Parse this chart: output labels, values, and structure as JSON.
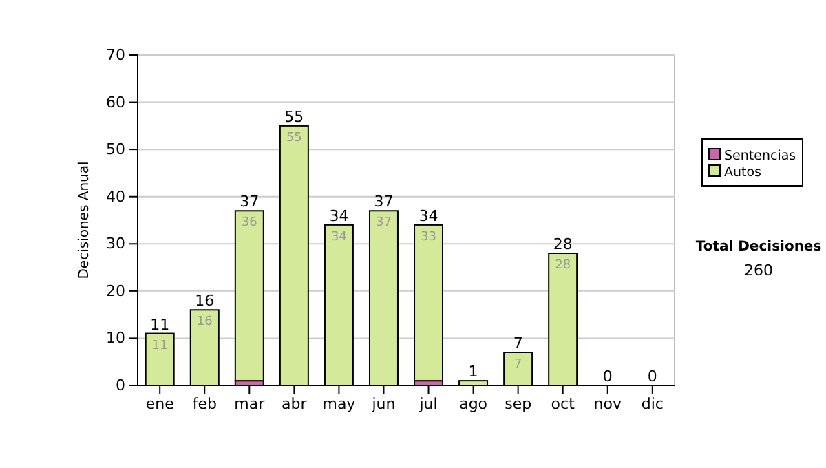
{
  "chart_data": {
    "type": "bar",
    "ylabel": "Decisiones Anual",
    "categories": [
      "ene",
      "feb",
      "mar",
      "abr",
      "may",
      "jun",
      "jul",
      "ago",
      "sep",
      "oct",
      "nov",
      "dic"
    ],
    "stacked": true,
    "series": [
      {
        "name": "Sentencias",
        "color": "#cc66aa",
        "values": [
          0,
          0,
          1,
          0,
          0,
          0,
          1,
          0,
          0,
          0,
          0,
          0
        ]
      },
      {
        "name": "Autos",
        "color": "#d4e99a",
        "values": [
          11,
          16,
          36,
          55,
          34,
          37,
          33,
          1,
          7,
          28,
          0,
          0
        ],
        "value_labels": [
          "11",
          "16",
          "36",
          "55",
          "34",
          "37",
          "33",
          null,
          "7",
          "28",
          null,
          null
        ]
      }
    ],
    "totals": [
      "11",
      "16",
      "37",
      "55",
      "34",
      "37",
      "34",
      "1",
      "7",
      "28",
      "0",
      "0"
    ],
    "ylim": [
      0,
      70
    ],
    "yticks": [
      0,
      10,
      20,
      30,
      40,
      50,
      60,
      70
    ],
    "grid": "y",
    "legend": "right",
    "annotations": [
      "Total Decisiones",
      "260"
    ]
  }
}
